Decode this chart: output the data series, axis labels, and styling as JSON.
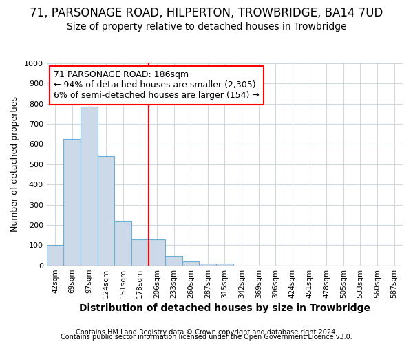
{
  "title": "71, PARSONAGE ROAD, HILPERTON, TROWBRIDGE, BA14 7UD",
  "subtitle": "Size of property relative to detached houses in Trowbridge",
  "xlabel": "Distribution of detached houses by size in Trowbridge",
  "ylabel": "Number of detached properties",
  "footnote1": "Contains HM Land Registry data © Crown copyright and database right 2024.",
  "footnote2": "Contains public sector information licensed under the Open Government Licence v3.0.",
  "bar_labels": [
    "42sqm",
    "69sqm",
    "97sqm",
    "124sqm",
    "151sqm",
    "178sqm",
    "206sqm",
    "233sqm",
    "260sqm",
    "287sqm",
    "315sqm",
    "342sqm",
    "369sqm",
    "396sqm",
    "424sqm",
    "451sqm",
    "478sqm",
    "505sqm",
    "533sqm",
    "560sqm",
    "587sqm"
  ],
  "bar_values": [
    100,
    625,
    785,
    540,
    220,
    130,
    130,
    45,
    18,
    10,
    10,
    0,
    0,
    0,
    0,
    0,
    0,
    0,
    0,
    0,
    0
  ],
  "bar_color": "#ccd9e8",
  "bar_edge_color": "#6baed6",
  "ylim": [
    0,
    1000
  ],
  "yticks": [
    0,
    100,
    200,
    300,
    400,
    500,
    600,
    700,
    800,
    900,
    1000
  ],
  "annotation_box_text": "71 PARSONAGE ROAD: 186sqm\n← 94% of detached houses are smaller (2,305)\n6% of semi-detached houses are larger (154) →",
  "red_line_index": 5.5,
  "background_color": "#ffffff",
  "grid_color": "#d0d8e0",
  "title_fontsize": 12,
  "subtitle_fontsize": 10,
  "annotation_fontsize": 9,
  "xlabel_fontsize": 10,
  "ylabel_fontsize": 9,
  "footnote_fontsize": 7
}
